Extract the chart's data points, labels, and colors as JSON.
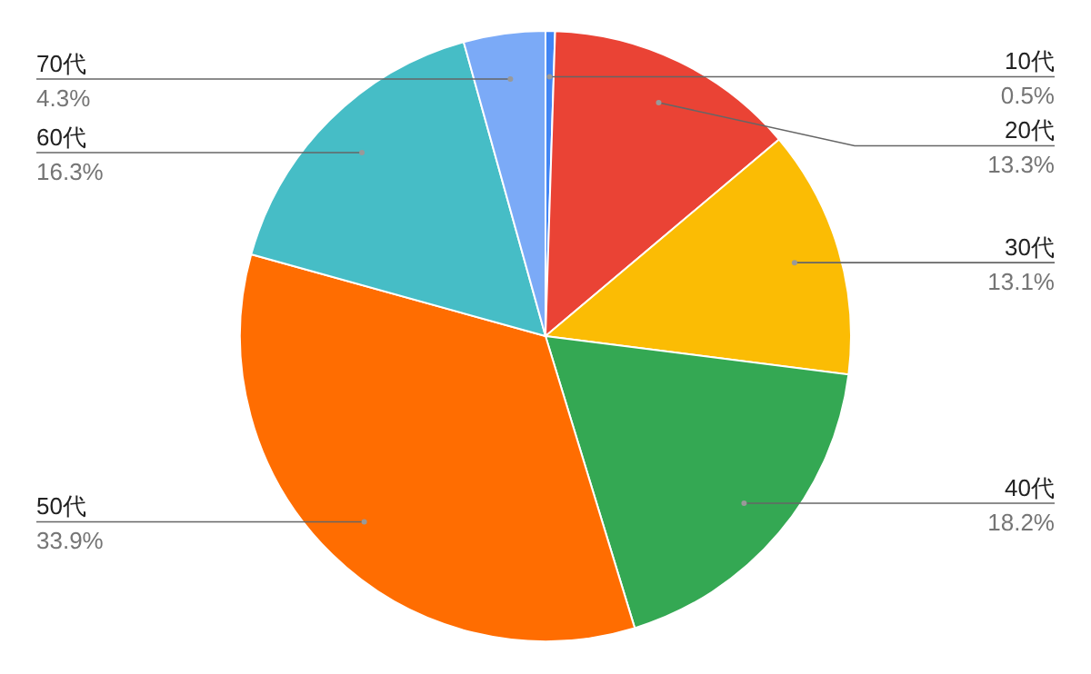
{
  "chart_data": {
    "type": "pie",
    "categories": [
      "10代",
      "20代",
      "30代",
      "40代",
      "50代",
      "60代",
      "70代"
    ],
    "values": [
      0.5,
      13.3,
      13.1,
      18.2,
      33.9,
      16.3,
      4.3
    ],
    "value_labels": [
      "0.5%",
      "13.3%",
      "13.1%",
      "18.2%",
      "33.9%",
      "16.3%",
      "4.3%"
    ],
    "colors": [
      "#4285f4",
      "#ea4335",
      "#fbbc04",
      "#34a853",
      "#ff6d01",
      "#46bdc6",
      "#7baaf7"
    ]
  }
}
